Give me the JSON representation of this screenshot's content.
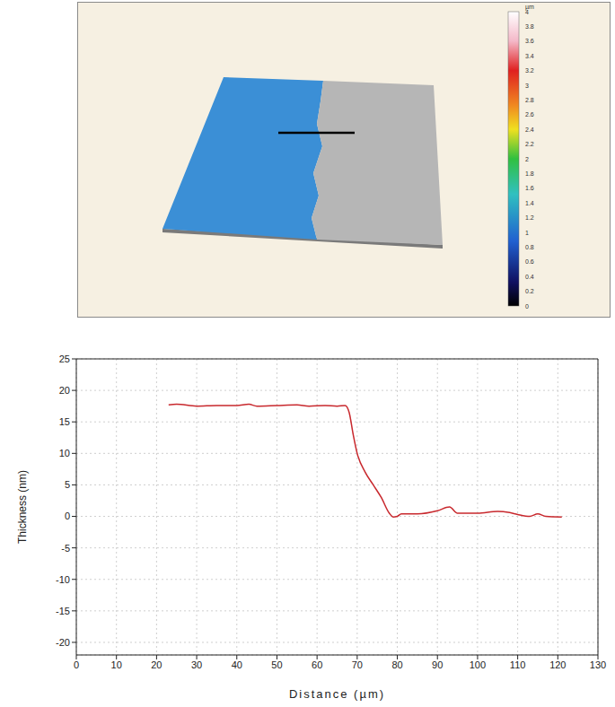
{
  "surface_map": {
    "colorbar": {
      "unit": "µm",
      "range": [
        0,
        4
      ],
      "ticks": [
        0,
        0.2,
        0.4,
        0.6,
        0.8,
        1,
        1.2,
        1.4,
        1.6,
        1.8,
        2,
        2.2,
        2.4,
        2.6,
        2.8,
        3,
        3.2,
        3.4,
        3.6,
        3.8,
        4
      ]
    }
  },
  "chart_data": {
    "type": "line",
    "x_label": "Distance (µm)",
    "y_label": "Thickness (nm)",
    "x": [
      23,
      25,
      30,
      35,
      40,
      43,
      45,
      50,
      55,
      58,
      62,
      65,
      67,
      68,
      69,
      70,
      72,
      74,
      76,
      78,
      79,
      80,
      81,
      85,
      90,
      93,
      95,
      100,
      105,
      108,
      110,
      113,
      115,
      117,
      121
    ],
    "values": [
      17.7,
      17.8,
      17.5,
      17.6,
      17.6,
      17.8,
      17.5,
      17.6,
      17.7,
      17.5,
      17.6,
      17.5,
      17.6,
      16.5,
      13,
      10,
      7,
      5,
      3,
      0.5,
      -0.1,
      0,
      0.4,
      0.4,
      0.9,
      1.5,
      0.5,
      0.5,
      0.8,
      0.6,
      0.3,
      0,
      0.4,
      0,
      -0.1
    ],
    "color": "#c8282d",
    "xlim": [
      0,
      130
    ],
    "xticks": [
      0,
      10,
      20,
      30,
      40,
      50,
      60,
      70,
      80,
      90,
      100,
      110,
      120,
      130
    ],
    "ylim": [
      -22,
      25
    ],
    "yticks": [
      -20,
      -15,
      -10,
      -5,
      0,
      5,
      10,
      15,
      20,
      25
    ],
    "grid": true
  }
}
